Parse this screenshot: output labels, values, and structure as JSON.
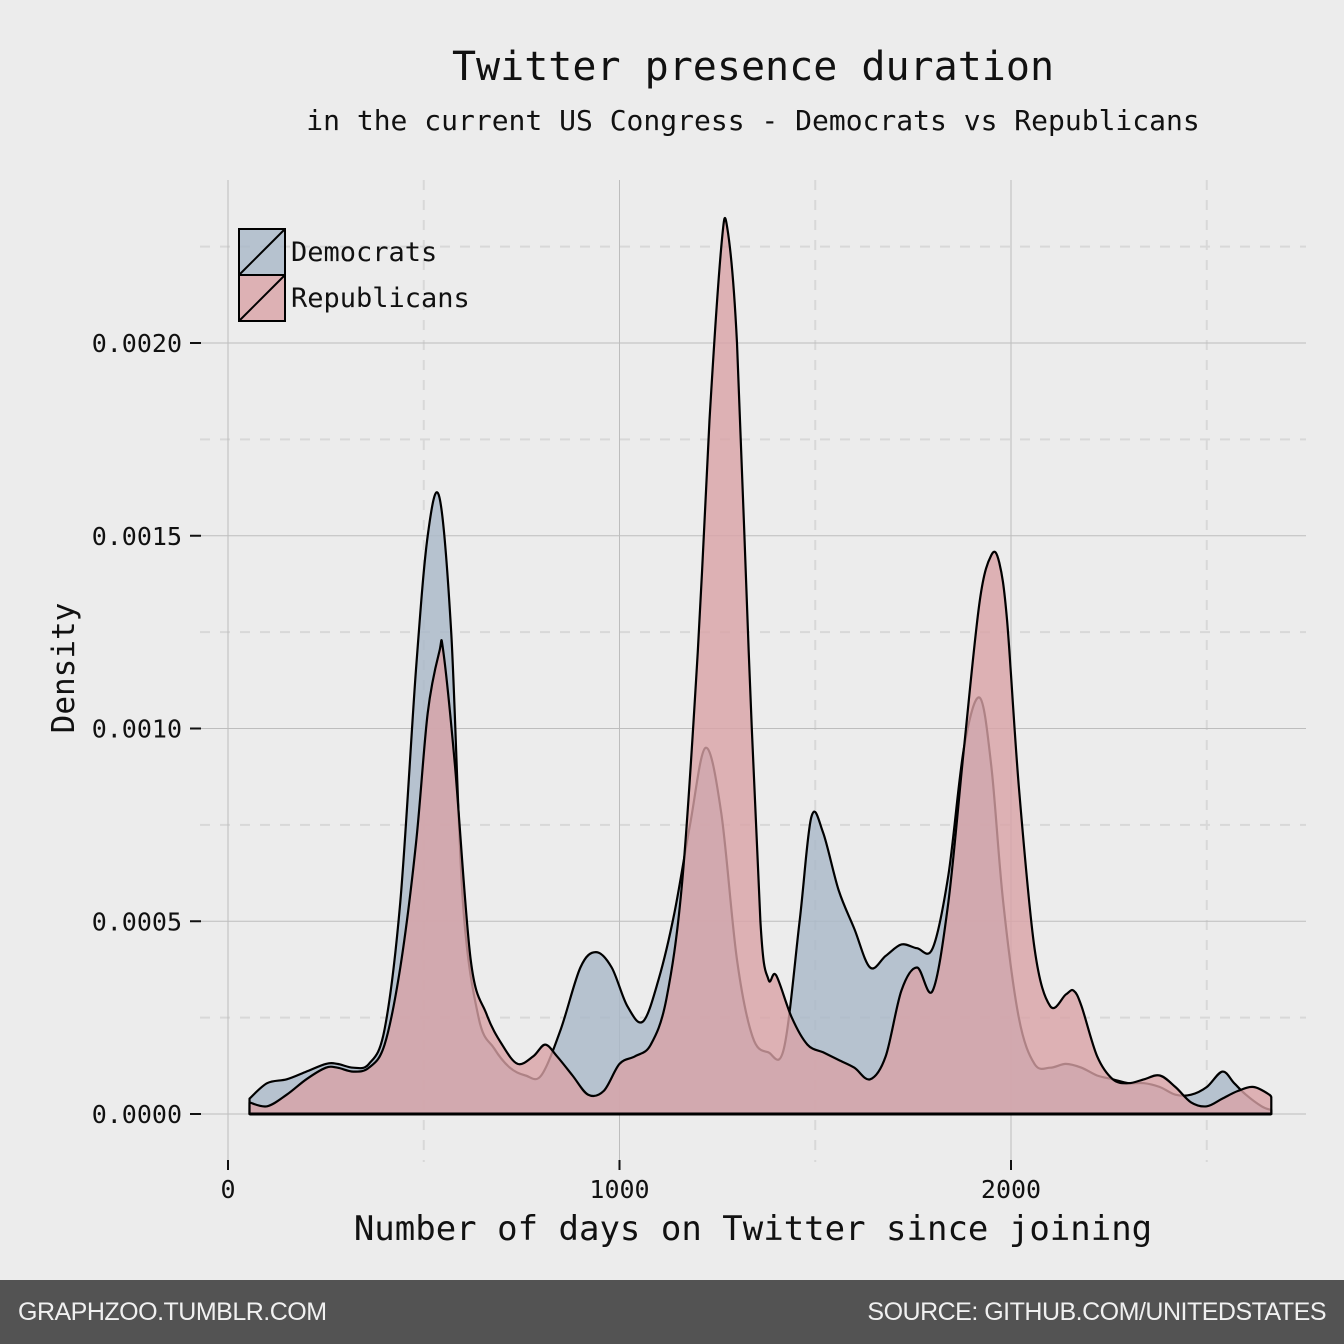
{
  "chart_data": {
    "type": "area",
    "title": "Twitter presence duration",
    "subtitle": "in the current US Congress - Democrats vs Republicans",
    "xlabel": "Number of days on Twitter since joining",
    "ylabel": "Density",
    "xlim": [
      0,
      2750
    ],
    "ylim": [
      0,
      0.0024
    ],
    "x_ticks": [
      0,
      1000,
      2000
    ],
    "x_tick_labels": [
      "0",
      "1000",
      "2000"
    ],
    "y_ticks": [
      0,
      0.0005,
      0.001,
      0.0015,
      0.002
    ],
    "y_tick_labels": [
      "0.0000",
      "0.0005",
      "0.0010",
      "0.0015",
      "0.0020"
    ],
    "grid": true,
    "legend_position": "top-left",
    "series": [
      {
        "name": "Democrats",
        "color": "#a9b8c8",
        "x": [
          55,
          100,
          150,
          200,
          250,
          280,
          320,
          360,
          400,
          440,
          480,
          510,
          540,
          570,
          600,
          640,
          680,
          720,
          760,
          800,
          850,
          900,
          940,
          980,
          1020,
          1060,
          1100,
          1140,
          1180,
          1220,
          1260,
          1300,
          1340,
          1380,
          1420,
          1460,
          1490,
          1520,
          1560,
          1600,
          1640,
          1680,
          1720,
          1760,
          1800,
          1840,
          1880,
          1920,
          1950,
          1980,
          2020,
          2060,
          2100,
          2140,
          2180,
          2220,
          2260,
          2300,
          2340,
          2380,
          2420,
          2460,
          2500,
          2540,
          2570,
          2600,
          2640,
          2665
        ],
        "y": [
          4e-05,
          8e-05,
          9e-05,
          0.00011,
          0.00013,
          0.00013,
          0.00012,
          0.00013,
          0.00022,
          0.00055,
          0.00115,
          0.0015,
          0.0016,
          0.00125,
          0.00055,
          0.00025,
          0.00017,
          0.00012,
          0.0001,
          0.0001,
          0.00022,
          0.00038,
          0.00042,
          0.00038,
          0.00028,
          0.00024,
          0.00035,
          0.00052,
          0.00075,
          0.00095,
          0.00078,
          0.0004,
          0.0002,
          0.00016,
          0.00017,
          0.0005,
          0.00077,
          0.00073,
          0.00058,
          0.00048,
          0.00038,
          0.00041,
          0.00044,
          0.00043,
          0.00043,
          0.00062,
          0.00095,
          0.00108,
          0.0009,
          0.00055,
          0.00025,
          0.00013,
          0.00012,
          0.00013,
          0.00012,
          0.0001,
          9e-05,
          8e-05,
          8e-05,
          7e-05,
          5e-05,
          5e-05,
          7e-05,
          0.00011,
          8e-05,
          5e-05,
          2e-05,
          1e-05
        ]
      },
      {
        "name": "Republicans",
        "color": "#d9a2a6",
        "x": [
          55,
          100,
          150,
          200,
          250,
          280,
          320,
          360,
          400,
          440,
          480,
          510,
          540,
          550,
          580,
          620,
          660,
          700,
          740,
          780,
          810,
          840,
          880,
          920,
          960,
          1000,
          1040,
          1080,
          1120,
          1160,
          1200,
          1230,
          1260,
          1275,
          1300,
          1330,
          1360,
          1380,
          1400,
          1440,
          1480,
          1520,
          1560,
          1600,
          1640,
          1680,
          1720,
          1760,
          1800,
          1840,
          1880,
          1920,
          1950,
          1970,
          1990,
          2020,
          2060,
          2100,
          2140,
          2160,
          2180,
          2220,
          2260,
          2300,
          2340,
          2380,
          2420,
          2460,
          2500,
          2540,
          2580,
          2620,
          2660,
          2665
        ],
        "y": [
          3e-05,
          2e-05,
          5e-05,
          9e-05,
          0.00012,
          0.00012,
          0.00011,
          0.00012,
          0.00018,
          0.00038,
          0.0007,
          0.00104,
          0.0012,
          0.0012,
          0.0009,
          0.0004,
          0.00026,
          0.00018,
          0.00013,
          0.00015,
          0.00018,
          0.00015,
          0.0001,
          5e-05,
          6e-05,
          0.00013,
          0.00015,
          0.00018,
          0.0003,
          0.0006,
          0.0012,
          0.0018,
          0.00225,
          0.0023,
          0.002,
          0.0012,
          0.0005,
          0.00035,
          0.00036,
          0.00025,
          0.00018,
          0.00016,
          0.00014,
          0.00012,
          9e-05,
          0.00015,
          0.00032,
          0.00038,
          0.00032,
          0.00055,
          0.00095,
          0.00133,
          0.00145,
          0.00143,
          0.00128,
          0.00085,
          0.00043,
          0.00028,
          0.00031,
          0.00032,
          0.00028,
          0.00015,
          9e-05,
          8e-05,
          9e-05,
          0.0001,
          7e-05,
          3e-05,
          2e-05,
          4e-05,
          6e-05,
          7e-05,
          5e-05,
          4e-05
        ]
      }
    ]
  },
  "footer": {
    "left": "GRAPHZOO.TUMBLR.COM",
    "right": "SOURCE: GITHUB.COM/UNITEDSTATES"
  }
}
